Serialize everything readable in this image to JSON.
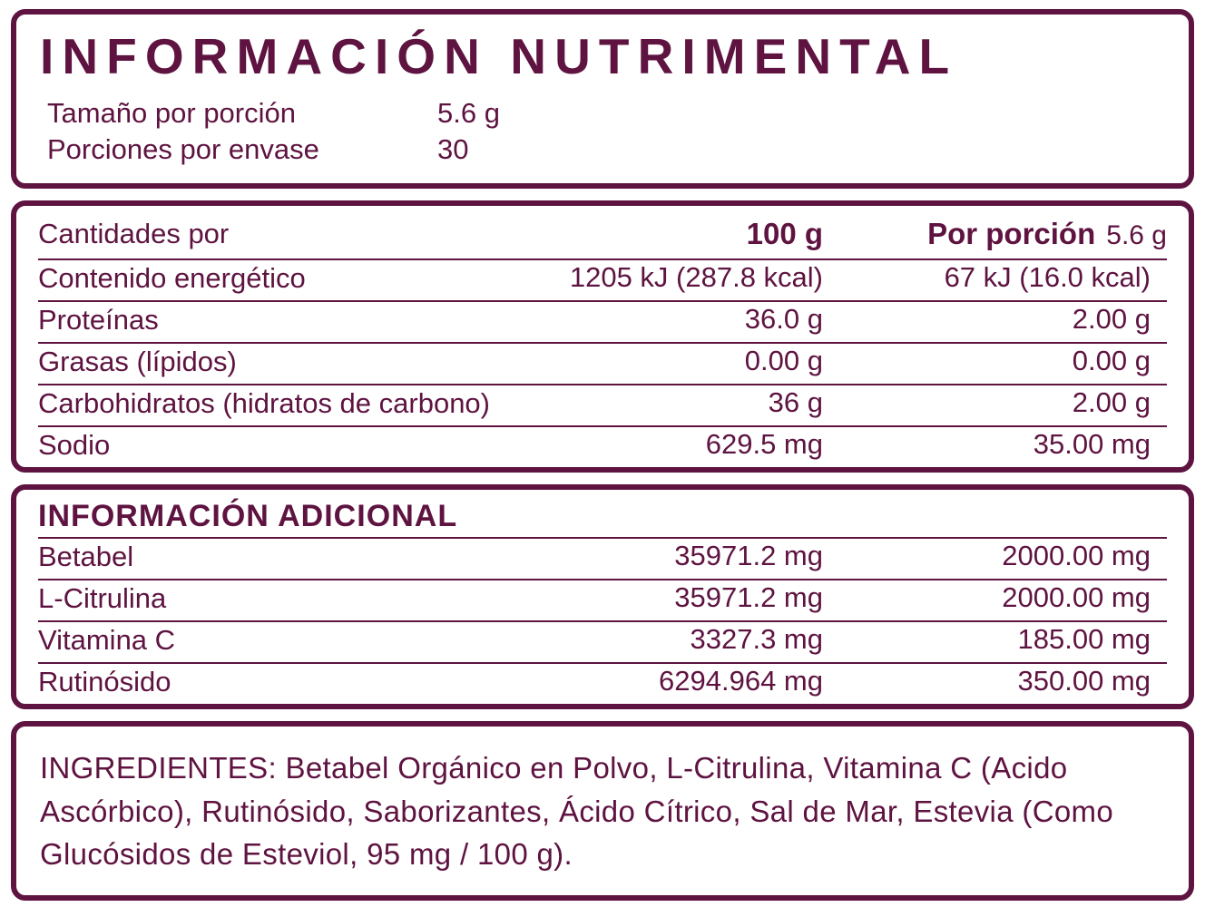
{
  "colors": {
    "accent": "#5e1340",
    "background": "#ffffff"
  },
  "header": {
    "title": "INFORMACIÓN NUTRIMENTAL",
    "serving_size_label": "Tamaño por porción",
    "serving_size_value": "5.6 g",
    "servings_label": "Porciones por envase",
    "servings_value": "30"
  },
  "nutrition_table": {
    "header": {
      "label": "Cantidades por",
      "col_100g": "100 g",
      "col_portion_bold": "Por porción",
      "col_portion_value": "5.6 g"
    },
    "rows": [
      {
        "label": "Contenido energético",
        "per100": "1205 kJ (287.8 kcal)",
        "portion": "67 kJ (16.0 kcal)"
      },
      {
        "label": "Proteínas",
        "per100": "36.0 g",
        "portion": "2.00 g"
      },
      {
        "label": "Grasas (lípidos)",
        "per100": "0.00 g",
        "portion": "0.00 g"
      },
      {
        "label": "Carbohidratos (hidratos de carbono)",
        "per100": "36 g",
        "portion": "2.00 g"
      },
      {
        "label": "Sodio",
        "per100": "629.5 mg",
        "portion": "35.00 mg"
      }
    ]
  },
  "additional_table": {
    "title": "INFORMACIÓN ADICIONAL",
    "rows": [
      {
        "label": "Betabel",
        "per100": "35971.2 mg",
        "portion": "2000.00 mg"
      },
      {
        "label": "L-Citrulina",
        "per100": "35971.2 mg",
        "portion": "2000.00 mg"
      },
      {
        "label": "Vitamina C",
        "per100": "3327.3 mg",
        "portion": "185.00 mg"
      },
      {
        "label": "Rutinósido",
        "per100": "6294.964 mg",
        "portion": "350.00 mg"
      }
    ]
  },
  "ingredients": {
    "text": "INGREDIENTES: Betabel Orgánico en Polvo, L-Citrulina, Vitamina C (Acido Ascórbico), Rutinósido, Saborizantes, Ácido Cítrico, Sal de Mar, Estevia (Como Glucósidos de Esteviol, 95 mg / 100 g)."
  }
}
